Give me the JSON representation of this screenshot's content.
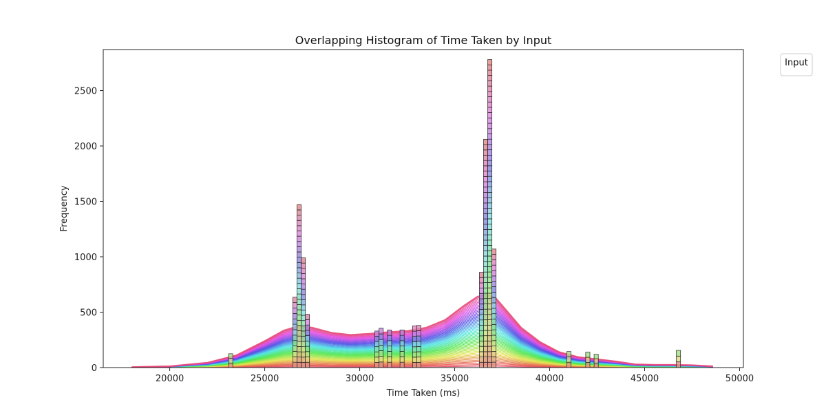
{
  "chart_data": {
    "type": "histogram",
    "title": "Overlapping Histogram of Time Taken by Input",
    "xlabel": "Time Taken (ms)",
    "ylabel": "Frequency",
    "xlim": [
      16500,
      50200
    ],
    "ylim": [
      0,
      2870
    ],
    "x_ticks": [
      20000,
      25000,
      30000,
      35000,
      40000,
      45000,
      50000
    ],
    "y_ticks": [
      0,
      500,
      1000,
      1500,
      2000,
      2500
    ],
    "x_tick_labels": [
      "20000",
      "25000",
      "30000",
      "35000",
      "40000",
      "45000",
      "50000"
    ],
    "y_tick_labels": [
      "0",
      "500",
      "1000",
      "1500",
      "2000",
      "2500"
    ],
    "legend": {
      "title": "Input",
      "placement": "outside-top-right"
    },
    "grid": false,
    "bin_width": 220,
    "stacked_bins": [
      {
        "x": 23100,
        "top": 125
      },
      {
        "x": 26480,
        "top": 635
      },
      {
        "x": 26700,
        "top": 1470
      },
      {
        "x": 26920,
        "top": 990
      },
      {
        "x": 27140,
        "top": 480
      },
      {
        "x": 30800,
        "top": 330
      },
      {
        "x": 31020,
        "top": 355
      },
      {
        "x": 31460,
        "top": 340
      },
      {
        "x": 32120,
        "top": 340
      },
      {
        "x": 32780,
        "top": 375
      },
      {
        "x": 33000,
        "top": 380
      },
      {
        "x": 36300,
        "top": 860
      },
      {
        "x": 36520,
        "top": 2060
      },
      {
        "x": 36740,
        "top": 2780
      },
      {
        "x": 36960,
        "top": 1070
      },
      {
        "x": 40900,
        "top": 145
      },
      {
        "x": 41900,
        "top": 140
      },
      {
        "x": 42340,
        "top": 120
      },
      {
        "x": 46670,
        "top": 155
      }
    ],
    "kde_envelope": {
      "x": [
        18000,
        20000,
        22000,
        23500,
        25000,
        26000,
        26800,
        27500,
        28500,
        29500,
        30500,
        31500,
        32500,
        33500,
        34500,
        35500,
        36200,
        36700,
        37200,
        37800,
        38500,
        39500,
        40500,
        41500,
        42500,
        43500,
        44500,
        45500,
        46500,
        47500,
        48600
      ],
      "y": [
        5,
        12,
        45,
        110,
        240,
        335,
        375,
        360,
        315,
        295,
        305,
        320,
        330,
        360,
        430,
        560,
        640,
        660,
        620,
        500,
        360,
        230,
        140,
        95,
        75,
        55,
        30,
        25,
        25,
        22,
        12
      ]
    },
    "series_count": 48
  }
}
